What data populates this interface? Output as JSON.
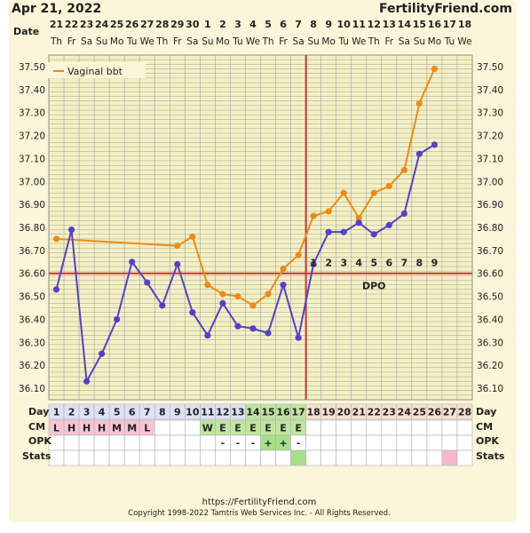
{
  "header": {
    "date_label": "Apr 21, 2022",
    "brand": "FertilityFriend.com"
  },
  "footer": {
    "url": "https://FertilityFriend.com",
    "copyright": "Copyright 1998-2022 Tamtris Web Services Inc. - All Rights Reserved."
  },
  "row_labels": {
    "date": "Date",
    "day": "Day",
    "cm": "CM",
    "opk": "OPK",
    "stats": "Stats"
  },
  "colors": {
    "panel_bg": "#fbf6d9",
    "grid_bg": "#f4f0c4",
    "grid_line": "#9ea59a",
    "series_vaginal": "#f08a14",
    "series_other": "#5540c8",
    "coverline": "#cc3333",
    "ovulation_line": "#cc3333",
    "cm_fertile": "#f7c4d6",
    "cm_egg": "#bfe6a0",
    "opk_positive": "#a8e08a",
    "day_pre": "#dde3f4",
    "day_fertile": "#bfe6a0",
    "day_post": "#f8e0d2",
    "stats_cell": "#f6b8cf"
  },
  "chart_data": {
    "type": "line",
    "dates": [
      "21",
      "22",
      "23",
      "24",
      "25",
      "26",
      "27",
      "28",
      "29",
      "30",
      "1",
      "2",
      "3",
      "4",
      "5",
      "6",
      "7",
      "8",
      "9",
      "10",
      "11",
      "12",
      "13",
      "14",
      "15",
      "16",
      "17",
      "18"
    ],
    "weekdays": [
      "Th",
      "Fr",
      "Sa",
      "Su",
      "Mo",
      "Tu",
      "We",
      "Th",
      "Fr",
      "Sa",
      "Su",
      "Mo",
      "Tu",
      "We",
      "Th",
      "Fr",
      "Sa",
      "Su",
      "Mo",
      "Tu",
      "We",
      "Th",
      "Fr",
      "Sa",
      "Su",
      "Mo",
      "Tu",
      "We"
    ],
    "cycle_days": [
      "1",
      "2",
      "3",
      "4",
      "5",
      "6",
      "7",
      "8",
      "9",
      "10",
      "11",
      "12",
      "13",
      "14",
      "15",
      "16",
      "17",
      "18",
      "19",
      "20",
      "21",
      "22",
      "23",
      "24",
      "25",
      "26",
      "27",
      "28"
    ],
    "yticks": [
      "37.50",
      "37.40",
      "37.30",
      "37.20",
      "37.10",
      "37.00",
      "36.90",
      "36.80",
      "36.70",
      "36.60",
      "36.50",
      "36.40",
      "36.30",
      "36.20",
      "36.10"
    ],
    "ylim": [
      36.05,
      37.55
    ],
    "series": [
      {
        "name": "Vaginal bbt",
        "values": [
          36.75,
          null,
          null,
          null,
          null,
          null,
          null,
          null,
          36.72,
          36.76,
          36.55,
          36.51,
          36.5,
          36.46,
          36.51,
          36.62,
          36.68,
          36.85,
          36.87,
          36.95,
          36.84,
          36.95,
          36.98,
          37.05,
          37.34,
          37.49,
          null,
          null
        ]
      },
      {
        "values": [
          36.53,
          36.79,
          36.13,
          36.25,
          36.4,
          36.65,
          36.56,
          36.46,
          36.64,
          36.43,
          36.33,
          36.47,
          36.37,
          36.36,
          36.34,
          36.55,
          36.32,
          36.64,
          36.78,
          36.78,
          36.82,
          36.77,
          36.81,
          36.86,
          37.12,
          37.16,
          null,
          null
        ]
      }
    ],
    "coverline": 36.6,
    "ovulation_day_index": 16,
    "dpo_labels": [
      "1",
      "2",
      "3",
      "4",
      "5",
      "6",
      "7",
      "8",
      "9"
    ],
    "dpo_title": "DPO",
    "cm": [
      "L",
      "H",
      "H",
      "H",
      "M",
      "M",
      "L",
      "",
      "",
      "",
      "W",
      "E",
      "E",
      "E",
      "E",
      "E",
      "E",
      "",
      "",
      "",
      "",
      "",
      "",
      "",
      "",
      "",
      "",
      ""
    ],
    "opk": [
      "",
      "",
      "",
      "",
      "",
      "",
      "",
      "",
      "",
      "",
      "",
      "-",
      "-",
      "-",
      "+",
      "+",
      "-",
      "",
      "",
      "",
      "",
      "",
      "",
      "",
      "",
      "",
      "",
      ""
    ],
    "stats_marks": [
      16,
      26
    ]
  }
}
